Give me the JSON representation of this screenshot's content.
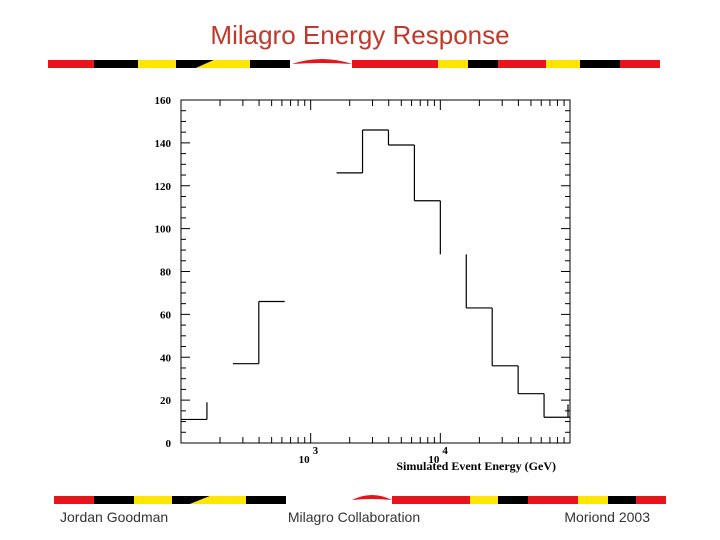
{
  "slide": {
    "title": "Milagro Energy Response",
    "footer_left": "Jordan Goodman",
    "footer_center": "Milagro Collaboration",
    "footer_right": "Moriond 2003"
  },
  "colors": {
    "title": "#c0392b",
    "band_red": "#e8141c",
    "band_yellow": "#ffe600",
    "band_black": "#000000"
  },
  "chart_data": {
    "type": "histogram",
    "title": "",
    "xlabel": "Simulated Event Energy (GeV)",
    "ylabel": "",
    "x_scale": "log",
    "xlim": [
      100,
      100000
    ],
    "ylim": [
      0,
      160
    ],
    "yticks": [
      0,
      20,
      40,
      60,
      80,
      100,
      120,
      140,
      160
    ],
    "xtick_labels": [
      {
        "base": "10",
        "exp": "3"
      },
      {
        "base": "10",
        "exp": "4"
      }
    ],
    "bins": [
      {
        "lo": 100,
        "hi": 158.5,
        "value": 11
      },
      {
        "lo": 158.5,
        "hi": 251.2,
        "value": 0
      },
      {
        "lo": 251.2,
        "hi": 398.1,
        "value": 37
      },
      {
        "lo": 398.1,
        "hi": 631.0,
        "value": 66
      },
      {
        "lo": 631.0,
        "hi": 1000,
        "value": 0
      },
      {
        "lo": 1000,
        "hi": 1584.9,
        "value": 0
      },
      {
        "lo": 1584.9,
        "hi": 2511.9,
        "value": 126
      },
      {
        "lo": 2511.9,
        "hi": 3981.1,
        "value": 146
      },
      {
        "lo": 3981.1,
        "hi": 6309.6,
        "value": 139
      },
      {
        "lo": 6309.6,
        "hi": 10000,
        "value": 113
      },
      {
        "lo": 10000,
        "hi": 15848.9,
        "value": 0
      },
      {
        "lo": 15848.9,
        "hi": 25118.9,
        "value": 63
      },
      {
        "lo": 25118.9,
        "hi": 39810.7,
        "value": 36
      },
      {
        "lo": 39810.7,
        "hi": 63095.7,
        "value": 23
      },
      {
        "lo": 63095.7,
        "hi": 100000,
        "value": 12
      }
    ]
  }
}
